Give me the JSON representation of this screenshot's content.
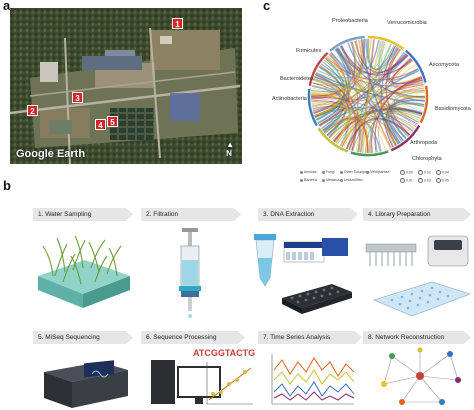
{
  "panels": {
    "a": "a",
    "b": "b",
    "c": "c"
  },
  "map": {
    "brand": "Google Earth",
    "north_symbol": "N",
    "sites": [
      {
        "label": "1"
      },
      {
        "label": "2"
      },
      {
        "label": "3"
      },
      {
        "label": "4"
      },
      {
        "label": "5"
      }
    ]
  },
  "chord": {
    "labels": [
      "Proteobacteria",
      "Verrucomicrobia",
      "Firmicutes",
      "Ascomycota",
      "Bacteroidetes",
      "Actinobacteria",
      "Basidiomycota",
      "Arthropoda",
      "Chlorophyta"
    ],
    "colors": {
      "proteo": "#e8c21e",
      "verruco": "#3a6cc8",
      "firmi": "#e2631c",
      "asco": "#8c2a6e",
      "bactero": "#3f9a55",
      "actino": "#c9c23a",
      "basidio": "#2f7fbf",
      "arthro": "#c4413a",
      "chloro": "#7aa0c8"
    }
  },
  "legend": {
    "items": [
      "Amiloas",
      "Fungi",
      "Other Eukaryota",
      "Viridiplantae",
      "Bacteria",
      "Metazoa",
      "Unidentified"
    ],
    "sizes": [
      "0.00",
      "0.02",
      "0.04",
      "0.01",
      "0.03",
      "0.05"
    ]
  },
  "workflow": {
    "steps": [
      "1. Water Sampling",
      "2. Filtration",
      "3. DNA Extraction",
      "4. Library Preparation",
      "5. MiSeq Sequencing",
      "6. Sequence Processing",
      "7. Time Series Analysis",
      "8. Network Reconstruction"
    ],
    "dna_sequence": "ATCGGTACTG"
  }
}
